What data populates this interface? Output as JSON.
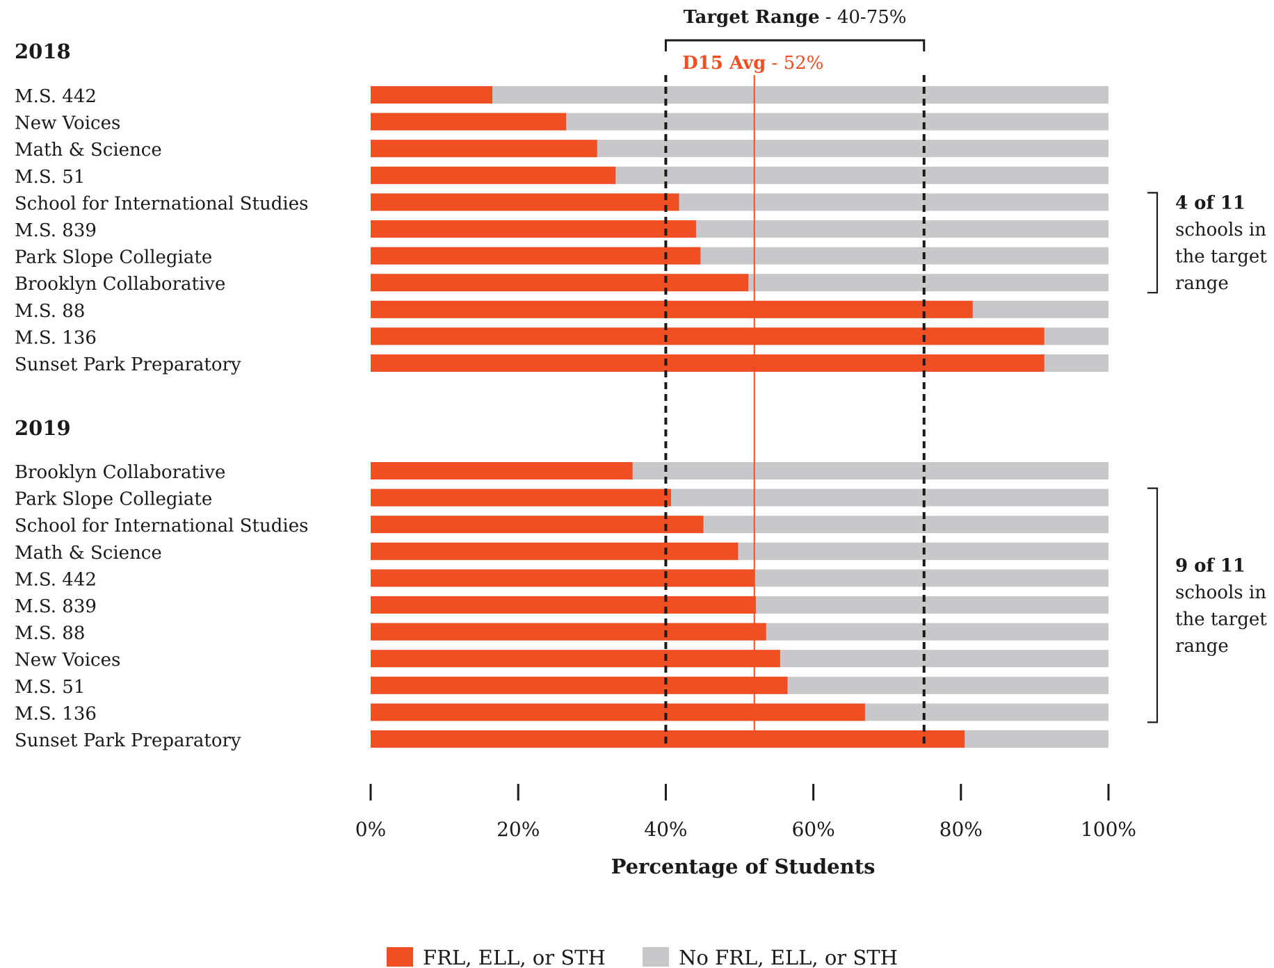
{
  "chart_data": {
    "type": "bar",
    "orientation": "horizontal",
    "stacked": true,
    "xlabel": "Percentage of Students",
    "xlim": [
      0,
      100
    ],
    "x_ticks": [
      "0%",
      "20%",
      "40%",
      "60%",
      "80%",
      "100%"
    ],
    "x_tick_values": [
      0,
      20,
      40,
      60,
      80,
      100
    ],
    "series": [
      {
        "name": "FRL, ELL, or STH",
        "color": "#f04e23"
      },
      {
        "name": "No FRL, ELL, or STH",
        "color": "#c8c8ca"
      }
    ],
    "groups": [
      {
        "title": "2018",
        "categories": [
          "M.S. 442",
          "New Voices",
          "Math & Science",
          "M.S. 51",
          "School for International Studies",
          "M.S. 839",
          "Park Slope Collegiate",
          "Brooklyn Collaborative",
          "M.S. 88",
          "M.S. 136",
          "Sunset Park Preparatory"
        ],
        "values": [
          16.5,
          26.5,
          30.7,
          33.2,
          41.8,
          44.1,
          44.7,
          51.2,
          81.6,
          91.3,
          91.3
        ],
        "bracket": {
          "line1": "4 of 11",
          "line2": "schools in",
          "line3": "the target",
          "line4": "range",
          "from_index": 4,
          "to_index": 7
        }
      },
      {
        "title": "2019",
        "categories": [
          "Brooklyn Collaborative",
          "Park Slope Collegiate",
          "School for International Studies",
          "Math & Science",
          "M.S. 442",
          "M.S. 839",
          "M.S. 88",
          "New Voices",
          "M.S. 51",
          "M.S. 136",
          "Sunset Park Preparatory"
        ],
        "values": [
          35.5,
          40.7,
          45.1,
          49.8,
          52.0,
          52.2,
          53.6,
          55.5,
          56.5,
          67.0,
          80.5
        ],
        "bracket": {
          "line1": "9 of 11",
          "line2": "schools in",
          "line3": "the target",
          "line4": "range",
          "from_index": 1,
          "to_index": 9
        }
      }
    ],
    "reference_lines": {
      "target_range": {
        "label_bold": "Target Range",
        "label_rest": " - 40-75%",
        "from": 40,
        "to": 75,
        "color": "#1a1a1a"
      },
      "average": {
        "label_bold": "D15 Avg",
        "label_rest": " - 52%",
        "value": 52,
        "color": "#f04e23"
      }
    },
    "grid": false,
    "legend_position": "bottom-center"
  }
}
